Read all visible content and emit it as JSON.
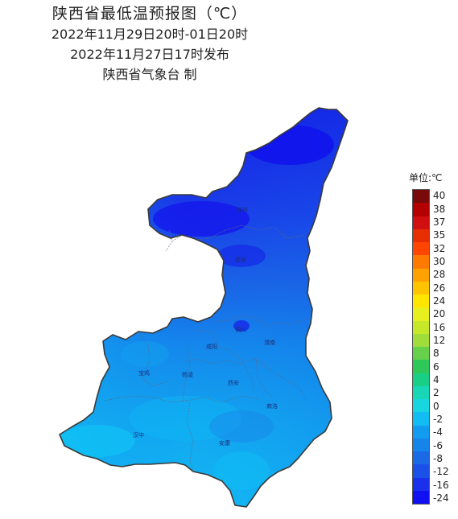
{
  "title": {
    "line1": "陕西省最低温预报图（℃）",
    "line2": "2022年11月29日20时-01日20时",
    "line3": "2022年11月27日17时发布",
    "line4": "陕西省气象台 制"
  },
  "legend": {
    "unit_label": "单位:℃",
    "bins": [
      {
        "label": "40",
        "color": "#7a0a0a"
      },
      {
        "label": "38",
        "color": "#b30000"
      },
      {
        "label": "37",
        "color": "#d01010"
      },
      {
        "label": "35",
        "color": "#e62e00"
      },
      {
        "label": "32",
        "color": "#ff4500"
      },
      {
        "label": "30",
        "color": "#ff7a00"
      },
      {
        "label": "28",
        "color": "#ffa200"
      },
      {
        "label": "26",
        "color": "#ffc300"
      },
      {
        "label": "24",
        "color": "#ffe600"
      },
      {
        "label": "20",
        "color": "#e8ef1e"
      },
      {
        "label": "16",
        "color": "#c6e82a"
      },
      {
        "label": "12",
        "color": "#a0dc3a"
      },
      {
        "label": "8",
        "color": "#66d04a"
      },
      {
        "label": "6",
        "color": "#2ec85a"
      },
      {
        "label": "4",
        "color": "#19cf86"
      },
      {
        "label": "2",
        "color": "#17d7b4"
      },
      {
        "label": "0",
        "color": "#18d6e0"
      },
      {
        "label": "-2",
        "color": "#13bcf2"
      },
      {
        "label": "-4",
        "color": "#129cf0"
      },
      {
        "label": "-6",
        "color": "#1784ea"
      },
      {
        "label": "-8",
        "color": "#1a6ae6"
      },
      {
        "label": "-12",
        "color": "#1a50e8"
      },
      {
        "label": "-16",
        "color": "#1a30ec"
      },
      {
        "label": "-24",
        "color": "#1010f0"
      }
    ]
  },
  "cities": [
    "榆林",
    "延安",
    "铜川",
    "渭南",
    "宝鸡",
    "咸阳",
    "西安",
    "商洛",
    "汉中",
    "安康",
    "杨凌"
  ]
}
